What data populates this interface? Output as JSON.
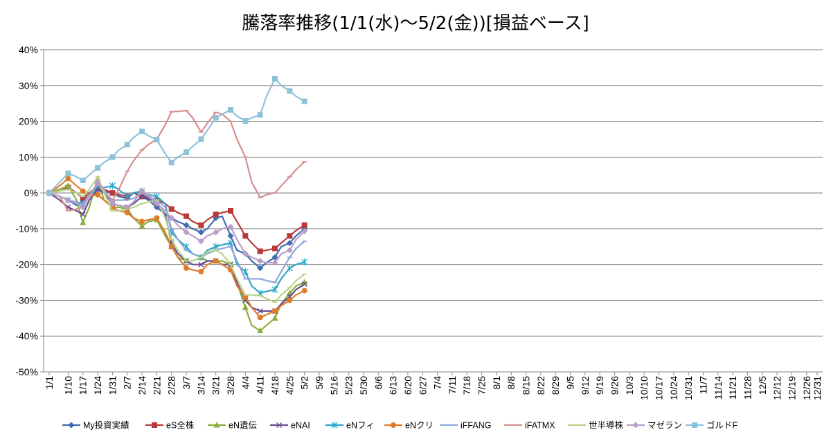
{
  "chart_data": {
    "type": "line",
    "title": "騰落率推移(1/1(水)～5/2(金))[損益ベース]",
    "xlabel": "",
    "ylabel": "",
    "ylim": [
      -50,
      40
    ],
    "y_ticks": [
      "40%",
      "30%",
      "20%",
      "10%",
      "0%",
      "-10%",
      "-20%",
      "-30%",
      "-40%",
      "-50%"
    ],
    "grid": "horizontal",
    "legend_position": "bottom",
    "x_tick_labels": [
      "1/1",
      "1/10",
      "1/17",
      "1/24",
      "1/31",
      "2/7",
      "2/14",
      "2/21",
      "2/28",
      "3/7",
      "3/14",
      "3/21",
      "3/28",
      "4/4",
      "4/11",
      "4/18",
      "4/25",
      "5/2",
      "5/9",
      "5/16",
      "5/23",
      "5/30",
      "6/6",
      "6/13",
      "6/20",
      "6/27",
      "7/4",
      "7/11",
      "7/18",
      "7/25",
      "8/1",
      "8/8",
      "8/15",
      "8/22",
      "8/29",
      "9/5",
      "9/12",
      "9/19",
      "9/26",
      "10/3",
      "10/10",
      "10/17",
      "10/24",
      "10/31",
      "11/7",
      "11/14",
      "11/21",
      "11/28",
      "12/5",
      "12/12",
      "12/19",
      "12/26",
      "12/31"
    ],
    "x_points": [
      "1/1",
      "1/6",
      "1/10",
      "1/14",
      "1/17",
      "1/20",
      "1/24",
      "1/27",
      "1/31",
      "2/3",
      "2/7",
      "2/10",
      "2/14",
      "2/17",
      "2/21",
      "2/25",
      "2/28",
      "3/3",
      "3/7",
      "3/10",
      "3/14",
      "3/17",
      "3/21",
      "3/24",
      "3/28",
      "3/31",
      "4/4",
      "4/7",
      "4/11",
      "4/14",
      "4/18",
      "4/21",
      "4/25",
      "4/28",
      "5/2"
    ],
    "series": [
      {
        "name": "My投資実績",
        "color": "#3C6DB1",
        "marker": "diamond",
        "values": [
          0,
          -1,
          -2,
          -3.5,
          -2,
          0,
          1,
          0.5,
          0,
          -1,
          -1.5,
          0,
          -1,
          -2,
          -4,
          -6,
          -7,
          -8,
          -9,
          -10,
          -11,
          -10,
          -7,
          -6.5,
          -12,
          -16,
          -17,
          -19,
          -21,
          -19.5,
          -18,
          -15,
          -14,
          -12,
          -10
        ]
      },
      {
        "name": "eS全株",
        "color": "#B83A3A",
        "marker": "square",
        "values": [
          0,
          1,
          1.5,
          0,
          -1.5,
          0,
          2,
          1,
          0,
          -0.5,
          -1,
          0,
          -1,
          -1,
          -2,
          -3,
          -4.5,
          -5.5,
          -6.5,
          -8,
          -9,
          -7.5,
          -6,
          -5.5,
          -5,
          -8,
          -12,
          -14,
          -16.3,
          -16,
          -15.5,
          -14,
          -12,
          -10.5,
          -9
        ]
      },
      {
        "name": "eN遺伝",
        "color": "#8AAD3F",
        "marker": "triangle",
        "values": [
          0,
          1,
          2,
          -2,
          -8.3,
          -4,
          4,
          -2,
          -4,
          -4,
          -4.5,
          -7,
          -9.3,
          -8,
          -7.5,
          -12,
          -15,
          -18,
          -19,
          -19,
          -18,
          -19,
          -19,
          -19,
          -20,
          -25,
          -32,
          -37,
          -38.5,
          -37,
          -35,
          -31,
          -28,
          -26,
          -25
        ]
      },
      {
        "name": "eNAI",
        "color": "#6A4C93",
        "marker": "x",
        "values": [
          0,
          -2,
          -4,
          -5,
          -6,
          -2,
          1,
          0,
          -3,
          -3.5,
          -4,
          -3,
          -1,
          -1.5,
          -3,
          -6,
          -14,
          -17,
          -19,
          -20,
          -20,
          -19,
          -19,
          -20,
          -20,
          -25,
          -30,
          -32,
          -33,
          -33,
          -33,
          -31,
          -29,
          -27,
          -25.5
        ]
      },
      {
        "name": "eNフィ",
        "color": "#2CA6C8",
        "marker": "asterisk",
        "values": [
          0,
          -1,
          -2,
          -3,
          -3,
          -1,
          2,
          1.5,
          2,
          1,
          -1,
          0,
          0.5,
          -0.5,
          -1,
          -3,
          -11,
          -13,
          -15,
          -17,
          -18,
          -16,
          -15,
          -14.5,
          -14,
          -20,
          -22,
          -26,
          -28,
          -27.5,
          -27,
          -24,
          -21,
          -20,
          -19.3
        ]
      },
      {
        "name": "eNクリ",
        "color": "#E07B2A",
        "marker": "circle",
        "values": [
          0,
          2,
          4,
          2,
          0.5,
          -1,
          -0.5,
          -2,
          -4,
          -5,
          -5.5,
          -7,
          -8,
          -7.5,
          -7,
          -11,
          -15,
          -18,
          -21,
          -21.5,
          -22,
          -20,
          -19,
          -20,
          -21.5,
          -26,
          -29,
          -32,
          -34.8,
          -34,
          -33,
          -31.5,
          -30,
          -28.5,
          -27.3
        ]
      },
      {
        "name": "iFFANG",
        "color": "#8FA6D8",
        "marker": "dash",
        "values": [
          0,
          -1,
          -2,
          -2.5,
          -3,
          -0.5,
          2.5,
          0.5,
          -2,
          -2,
          -2,
          -1.5,
          0,
          -1,
          -2,
          -4,
          -10,
          -13,
          -16,
          -17,
          -18,
          -17,
          -16,
          -15.5,
          -15,
          -19,
          -24,
          -24,
          -24,
          -24.5,
          -25,
          -22,
          -18,
          -15.5,
          -13.5
        ]
      },
      {
        "name": "iFATMX",
        "color": "#D68F8F",
        "marker": "dash",
        "values": [
          0,
          -1,
          -5,
          -4.5,
          -4,
          -1,
          3,
          0,
          -2,
          1,
          6,
          9,
          12,
          13.5,
          15,
          19,
          22.7,
          22.8,
          23,
          21,
          17,
          19.5,
          22.5,
          22,
          20,
          15,
          10,
          3,
          -1.3,
          -0.5,
          0,
          2,
          4.5,
          6.5,
          8.7
        ]
      },
      {
        "name": "世半導株",
        "color": "#B9D58B",
        "marker": "dash",
        "values": [
          0,
          0.5,
          1,
          0,
          -1,
          1,
          4.5,
          0,
          -5,
          -5,
          -4.5,
          -4,
          -3,
          -2.5,
          -2,
          -7,
          -13,
          -16,
          -19,
          -19,
          -18,
          -16.5,
          -16,
          -17,
          -20,
          -24,
          -28.5,
          -28.5,
          -28.7,
          -29.5,
          -30.5,
          -28.5,
          -26.5,
          -24.5,
          -22.7
        ]
      },
      {
        "name": "マゼラン",
        "color": "#B89EC7",
        "marker": "diamond",
        "values": [
          0,
          -1,
          -2,
          -3,
          -4,
          -1,
          3,
          1,
          -3,
          -3.5,
          -4,
          -2.5,
          0.5,
          -0.5,
          -3,
          -5,
          -7,
          -9,
          -11,
          -12,
          -13.5,
          -12,
          -11,
          -10,
          -9.5,
          -13,
          -17,
          -18,
          -19,
          -19.5,
          -19.5,
          -17,
          -16,
          -13,
          -10.7
        ]
      },
      {
        "name": "ゴルドF",
        "color": "#8EC2D9",
        "marker": "square",
        "values": [
          0,
          3,
          5.5,
          4.5,
          3.5,
          5,
          7,
          8.5,
          10,
          12,
          13.5,
          15.5,
          17.2,
          16,
          14.9,
          11,
          8.5,
          10,
          11.4,
          13,
          15,
          17.5,
          21,
          22,
          23.2,
          21.5,
          20.1,
          21,
          21.8,
          27,
          31.9,
          30,
          28.5,
          27,
          25.6
        ]
      }
    ]
  }
}
